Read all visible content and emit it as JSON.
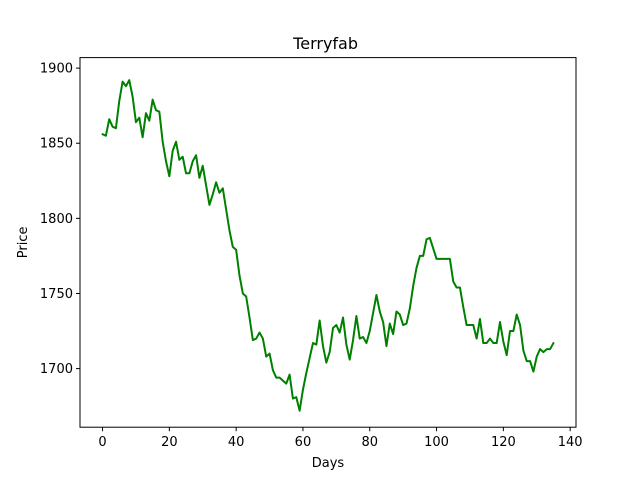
{
  "chart_data": {
    "type": "line",
    "title": "Terryfab",
    "xlabel": "Days",
    "ylabel": "Price",
    "xlim": [
      -6.75,
      141.75
    ],
    "ylim": [
      1661,
      1907
    ],
    "xticks": [
      0,
      20,
      40,
      60,
      80,
      100,
      120,
      140
    ],
    "yticks": [
      1700,
      1750,
      1800,
      1850,
      1900
    ],
    "grid": false,
    "colors": {
      "line": "#008000"
    },
    "series": [
      {
        "x": [
          0,
          1,
          2,
          3,
          4,
          5,
          6,
          7,
          8,
          9,
          10,
          11,
          12,
          13,
          14,
          15,
          16,
          17,
          18,
          19,
          20,
          21,
          22,
          23,
          24,
          25,
          26,
          27,
          28,
          29,
          30,
          31,
          32,
          33,
          34,
          35,
          36,
          37,
          38,
          39,
          40,
          41,
          42,
          43,
          44,
          45,
          46,
          47,
          48,
          49,
          50,
          51,
          52,
          53,
          54,
          55,
          56,
          57,
          58,
          59,
          60,
          61,
          62,
          63,
          64,
          65,
          66,
          67,
          68,
          69,
          70,
          71,
          72,
          73,
          74,
          75,
          76,
          77,
          78,
          79,
          80,
          81,
          82,
          83,
          84,
          85,
          86,
          87,
          88,
          89,
          90,
          91,
          92,
          93,
          94,
          95,
          96,
          97,
          98,
          99,
          100,
          101,
          102,
          103,
          104,
          105,
          106,
          107,
          108,
          109,
          110,
          111,
          112,
          113,
          114,
          115,
          116,
          117,
          118,
          119,
          120,
          121,
          122,
          123,
          124,
          125,
          126,
          127,
          128,
          129,
          130,
          131,
          132,
          133,
          134,
          135
        ],
        "values": [
          1856,
          1855,
          1866,
          1861,
          1860,
          1878,
          1891,
          1888,
          1892,
          1881,
          1864,
          1867,
          1854,
          1870,
          1865,
          1879,
          1872,
          1871,
          1851,
          1838,
          1828,
          1845,
          1851,
          1839,
          1841,
          1830,
          1830,
          1838,
          1842,
          1827,
          1835,
          1822,
          1809,
          1816,
          1824,
          1817,
          1820,
          1806,
          1792,
          1781,
          1779,
          1762,
          1750,
          1748,
          1734,
          1719,
          1720,
          1724,
          1720,
          1708,
          1710,
          1699,
          1694,
          1694,
          1692,
          1690,
          1696,
          1680,
          1681,
          1672,
          1686,
          1697,
          1707,
          1717,
          1716,
          1732,
          1715,
          1704,
          1711,
          1727,
          1729,
          1724,
          1734,
          1716,
          1706,
          1719,
          1735,
          1720,
          1721,
          1717,
          1725,
          1737,
          1749,
          1738,
          1731,
          1715,
          1730,
          1723,
          1738,
          1736,
          1729,
          1730,
          1740,
          1755,
          1767,
          1775,
          1775,
          1786,
          1787,
          1780,
          1773,
          1773,
          1773,
          1773,
          1773,
          1758,
          1754,
          1754,
          1741,
          1729,
          1729,
          1729,
          1720,
          1733,
          1717,
          1717,
          1720,
          1717,
          1717,
          1731,
          1718,
          1709,
          1725,
          1725,
          1736,
          1729,
          1712,
          1705,
          1705,
          1698,
          1708,
          1713,
          1711,
          1713,
          1713,
          1717
        ]
      }
    ]
  }
}
